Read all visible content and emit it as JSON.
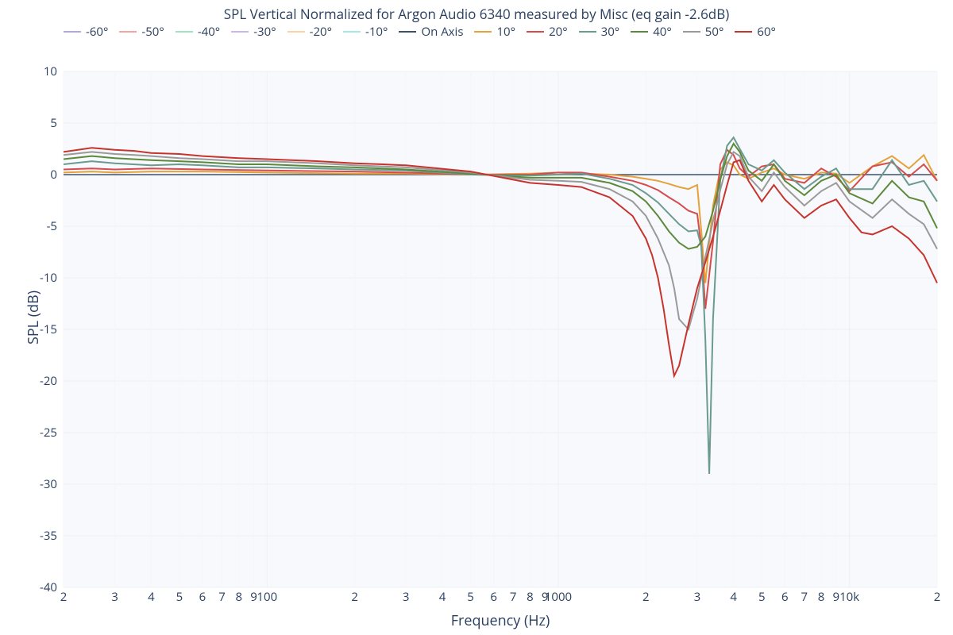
{
  "title": "SPL Vertical Normalized for Argon Audio 6340 measured by Misc (eq gain -2.6dB)",
  "xlabel": "Frequency (Hz)",
  "ylabel": "SPL (dB)",
  "background_color": "#ffffff",
  "plot_bg": "#f8f9fc",
  "grid_color": "#eef0f4",
  "text_color": "#2a3f5f",
  "title_fontsize": 17,
  "axis_label_fontsize": 18,
  "tick_fontsize": 15,
  "legend_fontsize": 15,
  "x": {
    "scale": "log",
    "min": 20,
    "max": 20000,
    "major_ticks": [
      100,
      1000,
      10000
    ],
    "major_labels": [
      "100",
      "1000",
      "10k"
    ],
    "minor_ticks": [
      20,
      30,
      40,
      50,
      60,
      70,
      80,
      90,
      200,
      300,
      400,
      500,
      600,
      700,
      800,
      900,
      2000,
      3000,
      4000,
      5000,
      6000,
      7000,
      8000,
      9000,
      20000
    ],
    "minor_labels": [
      "2",
      "3",
      "4",
      "5",
      "6",
      "7",
      "8",
      "9",
      "2",
      "3",
      "4",
      "5",
      "6",
      "7",
      "8",
      "9",
      "2",
      "3",
      "4",
      "5",
      "6",
      "7",
      "8",
      "9",
      "2"
    ]
  },
  "y": {
    "scale": "linear",
    "min": -40,
    "max": 10,
    "tick_step": 5,
    "ticks": [
      -40,
      -35,
      -30,
      -25,
      -20,
      -15,
      -10,
      -5,
      0,
      5,
      10
    ],
    "labels": [
      "-40",
      "-35",
      "-30",
      "-25",
      "-20",
      "-15",
      "-10",
      "-5",
      "0",
      "5",
      "10"
    ]
  },
  "legend_items": [
    {
      "label": "-60°",
      "color": "#b4a7e8"
    },
    {
      "label": "-50°",
      "color": "#f2a5a1"
    },
    {
      "label": "-40°",
      "color": "#a0e3c5"
    },
    {
      "label": "-30°",
      "color": "#c9b8ec"
    },
    {
      "label": "-20°",
      "color": "#fad2a5"
    },
    {
      "label": "-10°",
      "color": "#a5e8ea"
    },
    {
      "label": "On Axis",
      "color": "#3a5270"
    },
    {
      "label": "10°",
      "color": "#e5a23b"
    },
    {
      "label": "20°",
      "color": "#d64c4c"
    },
    {
      "label": "30°",
      "color": "#6b9a8f"
    },
    {
      "label": "40°",
      "color": "#5c8a3a"
    },
    {
      "label": "50°",
      "color": "#9a9a9a"
    },
    {
      "label": "60°",
      "color": "#c7342e"
    }
  ],
  "series": [
    {
      "name": "On Axis",
      "color": "#3a5270",
      "width": 1.5,
      "x": [
        20,
        20000
      ],
      "y": [
        0,
        0
      ]
    },
    {
      "name": "10°",
      "color": "#e5a23b",
      "width": 2,
      "x": [
        20,
        25,
        30,
        40,
        60,
        100,
        200,
        300,
        500,
        800,
        1000,
        1500,
        1800,
        2000,
        2200,
        2400,
        2600,
        2800,
        3000,
        3100,
        3200,
        3400,
        3600,
        3800,
        4000,
        4200,
        4500,
        5000,
        5500,
        6000,
        7000,
        8000,
        9000,
        10000,
        12000,
        14000,
        16000,
        18000,
        20000
      ],
      "y": [
        0.2,
        0.3,
        0.2,
        0.3,
        0.3,
        0.2,
        0.1,
        0.1,
        0.0,
        0.1,
        0.2,
        0.0,
        -0.2,
        -0.4,
        -0.6,
        -0.9,
        -1.2,
        -1.4,
        -1.0,
        -5.5,
        -10.5,
        -3.0,
        0.5,
        1.2,
        0.9,
        0.0,
        -0.4,
        0.2,
        0.6,
        0.0,
        -0.4,
        0.2,
        0.1,
        -0.8,
        0.8,
        1.8,
        0.6,
        1.9,
        -0.6
      ]
    },
    {
      "name": "20°",
      "color": "#d64c4c",
      "width": 2,
      "x": [
        20,
        25,
        30,
        40,
        60,
        100,
        200,
        300,
        500,
        800,
        1000,
        1200,
        1500,
        1800,
        2000,
        2200,
        2400,
        2600,
        2800,
        3000,
        3100,
        3200,
        3400,
        3600,
        3800,
        4000,
        4200,
        4500,
        5000,
        5500,
        6000,
        7000,
        8000,
        9000,
        10000,
        12000,
        14000,
        16000,
        18000,
        20000
      ],
      "y": [
        0.5,
        0.6,
        0.5,
        0.6,
        0.5,
        0.4,
        0.3,
        0.2,
        0.0,
        0.0,
        0.2,
        0.2,
        -0.2,
        -0.6,
        -1.0,
        -1.5,
        -2.2,
        -2.8,
        -3.5,
        -3.8,
        -7.0,
        -13.0,
        -6.5,
        1.0,
        2.4,
        1.9,
        0.6,
        -0.2,
        0.8,
        1.0,
        -0.4,
        -0.8,
        0.6,
        -0.2,
        -1.6,
        0.8,
        1.2,
        -0.2,
        1.0,
        -0.6
      ]
    },
    {
      "name": "30°",
      "color": "#6b9a8f",
      "width": 2,
      "x": [
        20,
        25,
        30,
        40,
        50,
        60,
        80,
        100,
        150,
        200,
        300,
        500,
        800,
        1000,
        1200,
        1500,
        1800,
        2000,
        2200,
        2400,
        2600,
        2800,
        3000,
        3100,
        3200,
        3300,
        3400,
        3600,
        3800,
        4000,
        4200,
        4500,
        5000,
        5500,
        6000,
        7000,
        8000,
        9000,
        10000,
        12000,
        14000,
        16000,
        18000,
        20000
      ],
      "y": [
        1.0,
        1.3,
        1.1,
        0.9,
        1.0,
        0.9,
        0.7,
        0.7,
        0.6,
        0.5,
        0.4,
        0.0,
        -0.1,
        0.0,
        0.1,
        -0.4,
        -1.0,
        -1.8,
        -2.7,
        -3.8,
        -4.8,
        -5.5,
        -5.4,
        -7.0,
        -16.0,
        -29.0,
        -14.0,
        -0.5,
        2.8,
        3.6,
        2.5,
        1.0,
        0.4,
        1.4,
        0.2,
        -1.4,
        -0.2,
        0.6,
        -1.4,
        -1.4,
        1.4,
        -1.0,
        -0.6,
        -2.6
      ]
    },
    {
      "name": "40°",
      "color": "#5c8a3a",
      "width": 2,
      "x": [
        20,
        25,
        30,
        40,
        50,
        60,
        80,
        100,
        150,
        200,
        300,
        500,
        800,
        1000,
        1200,
        1500,
        1800,
        2000,
        2200,
        2400,
        2600,
        2800,
        3000,
        3200,
        3400,
        3600,
        3800,
        4000,
        4200,
        4500,
        5000,
        5500,
        6000,
        7000,
        8000,
        9000,
        10000,
        12000,
        14000,
        16000,
        18000,
        20000
      ],
      "y": [
        1.5,
        1.8,
        1.6,
        1.4,
        1.3,
        1.2,
        1.0,
        1.0,
        0.8,
        0.7,
        0.5,
        0.1,
        -0.3,
        -0.3,
        -0.3,
        -0.8,
        -1.6,
        -2.6,
        -4.0,
        -5.5,
        -6.6,
        -7.2,
        -7.0,
        -6.0,
        -3.5,
        -0.5,
        1.8,
        3.0,
        2.2,
        0.4,
        -0.6,
        1.0,
        -0.6,
        -2.0,
        -0.6,
        0.0,
        -1.8,
        -2.8,
        -0.6,
        -2.2,
        -2.6,
        -5.2
      ]
    },
    {
      "name": "50°",
      "color": "#9a9a9a",
      "width": 2,
      "x": [
        20,
        25,
        30,
        35,
        40,
        50,
        60,
        80,
        100,
        150,
        200,
        300,
        500,
        800,
        1000,
        1200,
        1500,
        1800,
        2000,
        2200,
        2400,
        2500,
        2600,
        2800,
        3000,
        3200,
        3400,
        3600,
        3800,
        4000,
        4200,
        4500,
        5000,
        5500,
        6000,
        7000,
        8000,
        9000,
        10000,
        12000,
        14000,
        16000,
        18000,
        20000
      ],
      "y": [
        1.9,
        2.2,
        2.0,
        1.9,
        1.8,
        1.6,
        1.5,
        1.3,
        1.3,
        1.1,
        0.9,
        0.7,
        0.2,
        -0.5,
        -0.6,
        -0.7,
        -1.4,
        -2.6,
        -4.0,
        -6.2,
        -8.8,
        -11.0,
        -14.0,
        -15.0,
        -12.0,
        -8.0,
        -4.5,
        -1.5,
        1.0,
        2.2,
        1.8,
        -0.2,
        -1.6,
        0.2,
        -1.2,
        -3.0,
        -1.6,
        -0.8,
        -2.6,
        -4.2,
        -2.4,
        -3.8,
        -4.8,
        -7.2
      ]
    },
    {
      "name": "60°",
      "color": "#c7342e",
      "width": 2,
      "x": [
        20,
        25,
        30,
        35,
        40,
        50,
        60,
        80,
        100,
        150,
        200,
        250,
        300,
        500,
        800,
        1000,
        1200,
        1500,
        1800,
        2000,
        2100,
        2200,
        2300,
        2400,
        2500,
        2600,
        2800,
        3000,
        3200,
        3400,
        3600,
        3800,
        4000,
        4200,
        4500,
        5000,
        5500,
        6000,
        7000,
        8000,
        9000,
        10000,
        11000,
        12000,
        14000,
        16000,
        18000,
        20000
      ],
      "y": [
        2.2,
        2.6,
        2.4,
        2.3,
        2.1,
        2.0,
        1.8,
        1.6,
        1.5,
        1.3,
        1.1,
        1.0,
        0.9,
        0.3,
        -0.8,
        -1.0,
        -1.2,
        -2.2,
        -4.0,
        -6.2,
        -7.8,
        -10.0,
        -13.0,
        -16.5,
        -19.5,
        -18.5,
        -14.5,
        -11.0,
        -8.5,
        -6.0,
        -3.5,
        -1.0,
        1.2,
        1.4,
        -0.6,
        -2.6,
        -1.0,
        -2.4,
        -4.2,
        -3.0,
        -2.4,
        -4.2,
        -5.6,
        -5.8,
        -5.0,
        -6.2,
        -7.8,
        -10.5
      ]
    }
  ]
}
